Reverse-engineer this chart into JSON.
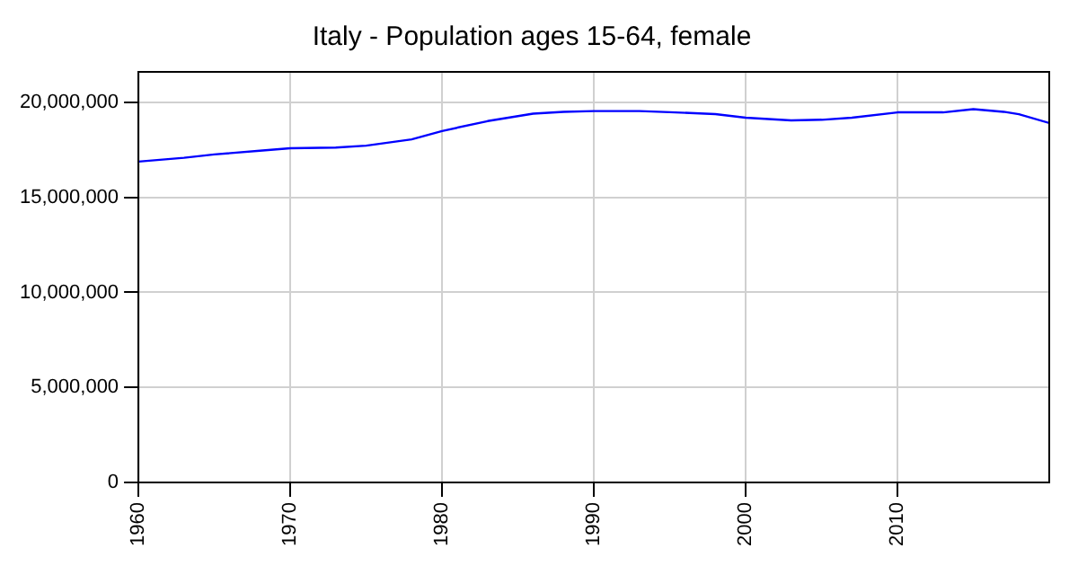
{
  "chart_data": {
    "type": "line",
    "title": "Italy - Population ages 15-64, female",
    "x": [
      1960,
      1963,
      1965,
      1968,
      1970,
      1973,
      1975,
      1978,
      1980,
      1983,
      1986,
      1988,
      1990,
      1993,
      1995,
      1998,
      2000,
      2003,
      2005,
      2007,
      2010,
      2013,
      2015,
      2017,
      2018,
      2020
    ],
    "series": [
      {
        "color": "#0000ff",
        "values": [
          16880000,
          17080000,
          17260000,
          17450000,
          17580000,
          17620000,
          17720000,
          18050000,
          18490000,
          19010000,
          19400000,
          19500000,
          19540000,
          19540000,
          19480000,
          19380000,
          19190000,
          19050000,
          19080000,
          19190000,
          19470000,
          19470000,
          19640000,
          19500000,
          19370000,
          18910000
        ]
      }
    ],
    "xlim": [
      1960,
      2020
    ],
    "xticks": [
      1960,
      1970,
      1980,
      1990,
      2000,
      2010
    ],
    "ylim": [
      0,
      21600000
    ],
    "yticks": [
      {
        "value": 0,
        "label": "0"
      },
      {
        "value": 5000000,
        "label": "5,000,000"
      },
      {
        "value": 10000000,
        "label": "10,000,000"
      },
      {
        "value": 15000000,
        "label": "15,000,000"
      },
      {
        "value": 20000000,
        "label": "20,000,000"
      }
    ],
    "grid": true,
    "legend": false,
    "marker": "none",
    "line_style": "solid"
  }
}
